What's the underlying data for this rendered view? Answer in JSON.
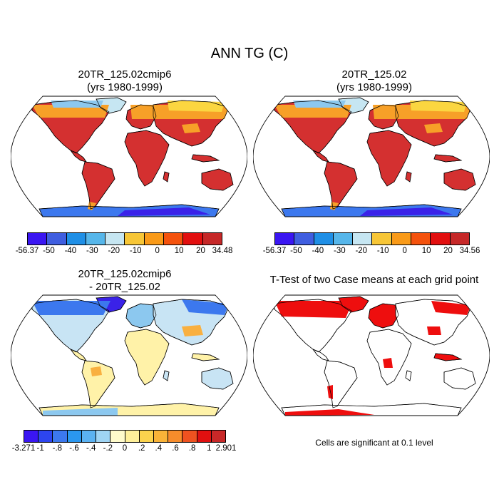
{
  "figure": {
    "title": "ANN TG (C)"
  },
  "panels": [
    {
      "title_line1": "20TR_125.02cmip6",
      "title_line2": "(yrs 1980-1999)",
      "colorbar": {
        "colors": [
          "#3a16f2",
          "#3f5ee0",
          "#1f8fe6",
          "#56b6ea",
          "#c6e6f2",
          "#f7c637",
          "#f99a18",
          "#f4520d",
          "#e20f0f",
          "#c62828"
        ],
        "labels": [
          "-56.37",
          "-50",
          "-40",
          "-30",
          "-20",
          "-10",
          "0",
          "10",
          "20",
          "34.48"
        ]
      }
    },
    {
      "title_line1": "20TR_125.02",
      "title_line2": "(yrs 1980-1999)",
      "colorbar": {
        "colors": [
          "#3a16f2",
          "#3f5ee0",
          "#1f8fe6",
          "#56b6ea",
          "#c6e6f2",
          "#f7c637",
          "#f99a18",
          "#f4520d",
          "#e20f0f",
          "#c62828"
        ],
        "labels": [
          "-56.37",
          "-50",
          "-40",
          "-30",
          "-20",
          "-10",
          "0",
          "10",
          "20",
          "34.56"
        ]
      }
    },
    {
      "title_line1": "20TR_125.02cmip6",
      "title_line2": "- 20TR_125.02",
      "colorbar": {
        "colors": [
          "#3a16f2",
          "#2d45f0",
          "#3c78ee",
          "#2a97f0",
          "#5bb2f2",
          "#9fd4f4",
          "#fffbcb",
          "#fff09a",
          "#fbd34d",
          "#f9b338",
          "#f78c2b",
          "#ef5220",
          "#e01010",
          "#c82828"
        ],
        "labels": [
          "-3.271",
          "-1",
          "-.8",
          "-.6",
          "-.4",
          "-.2",
          "0",
          ".2",
          ".4",
          ".6",
          ".8",
          "1",
          "2.901"
        ]
      }
    },
    {
      "title_line1": "T-Test of two Case means at each grid point",
      "note": "Cells are significant at 0.1 level"
    }
  ],
  "map_colors": {
    "land_warm": "#d43030",
    "land_orange": "#f7a028",
    "land_yellow": "#fbd640",
    "land_light": "#c6e6f2",
    "land_lightblue": "#8cc8ef",
    "land_blue": "#3c78ee",
    "land_darkblue": "#3a22e8",
    "diff_yellow": "#fff2a8",
    "diff_orange": "#f9b040",
    "diff_pale": "#c8e4f4",
    "ttest_red": "#ee0e0e"
  }
}
